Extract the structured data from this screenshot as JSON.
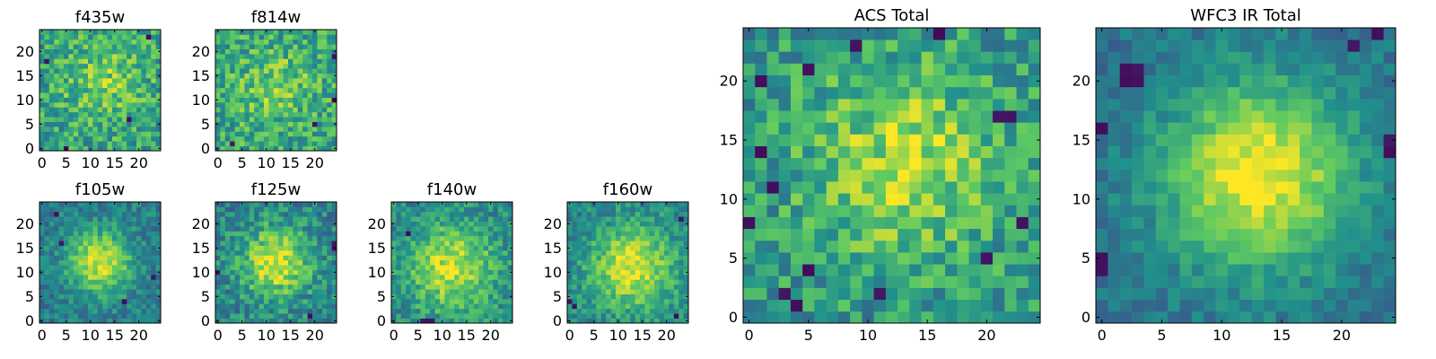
{
  "figure": {
    "colormap": "viridis",
    "colormap_stops": [
      "#440154",
      "#3b528b",
      "#21918c",
      "#5ec962",
      "#fde725"
    ]
  },
  "chart_data": [
    {
      "id": "f435w",
      "type": "heatmap",
      "title": "f435w",
      "grid": [
        25,
        25
      ],
      "xlim": [
        -0.5,
        24.5
      ],
      "ylim": [
        -0.5,
        24.5
      ],
      "xticks": [
        0,
        5,
        10,
        15,
        20
      ],
      "yticks": [
        0,
        5,
        10,
        15,
        20
      ],
      "xtick_labels": [
        "0",
        "5",
        "10",
        "15",
        "20"
      ],
      "ytick_labels": [
        "0",
        "5",
        "10",
        "15",
        "20"
      ],
      "peak": [
        13,
        14
      ],
      "peak_value": 0.78,
      "sigma": 6,
      "background": 0.58,
      "noise": 0.22,
      "dark_pixels": [
        [
          5,
          0
        ],
        [
          1,
          18
        ],
        [
          22,
          23
        ],
        [
          18,
          6
        ]
      ]
    },
    {
      "id": "f814w",
      "type": "heatmap",
      "title": "f814w",
      "grid": [
        25,
        25
      ],
      "xlim": [
        -0.5,
        24.5
      ],
      "ylim": [
        -0.5,
        24.5
      ],
      "xticks": [
        0,
        5,
        10,
        15,
        20
      ],
      "yticks": [
        0,
        5,
        10,
        15,
        20
      ],
      "xtick_labels": [
        "0",
        "5",
        "10",
        "15",
        "20"
      ],
      "ytick_labels": [
        "0",
        "5",
        "10",
        "15",
        "20"
      ],
      "peak": [
        12,
        13
      ],
      "peak_value": 0.78,
      "sigma": 6,
      "background": 0.58,
      "noise": 0.22,
      "dark_pixels": [
        [
          24,
          19
        ],
        [
          24,
          10
        ],
        [
          3,
          1
        ],
        [
          20,
          5
        ]
      ]
    },
    {
      "id": "f105w",
      "type": "heatmap",
      "title": "f105w",
      "grid": [
        25,
        25
      ],
      "xlim": [
        -0.5,
        24.5
      ],
      "ylim": [
        -0.5,
        24.5
      ],
      "xticks": [
        0,
        5,
        10,
        15,
        20
      ],
      "yticks": [
        0,
        5,
        10,
        15,
        20
      ],
      "xtick_labels": [
        "0",
        "5",
        "10",
        "15",
        "20"
      ],
      "ytick_labels": [
        "0",
        "5",
        "10",
        "15",
        "20"
      ],
      "peak": [
        12,
        12
      ],
      "peak_value": 0.95,
      "sigma": 4.5,
      "background": 0.42,
      "noise": 0.14,
      "dark_pixels": [
        [
          4,
          16
        ],
        [
          3,
          22
        ],
        [
          17,
          4
        ],
        [
          23,
          9
        ]
      ]
    },
    {
      "id": "f125w",
      "type": "heatmap",
      "title": "f125w",
      "grid": [
        25,
        25
      ],
      "xlim": [
        -0.5,
        24.5
      ],
      "ylim": [
        -0.5,
        24.5
      ],
      "xticks": [
        0,
        5,
        10,
        15,
        20
      ],
      "yticks": [
        0,
        5,
        10,
        15,
        20
      ],
      "xtick_labels": [
        "0",
        "5",
        "10",
        "15",
        "20"
      ],
      "ytick_labels": [
        "0",
        "5",
        "10",
        "15",
        "20"
      ],
      "peak": [
        12,
        12
      ],
      "peak_value": 0.95,
      "sigma": 5,
      "background": 0.45,
      "noise": 0.18,
      "dark_pixels": [
        [
          0,
          10
        ],
        [
          24,
          15
        ],
        [
          24,
          16
        ],
        [
          19,
          1
        ]
      ]
    },
    {
      "id": "f140w",
      "type": "heatmap",
      "title": "f140w",
      "grid": [
        25,
        25
      ],
      "xlim": [
        -0.5,
        24.5
      ],
      "ylim": [
        -0.5,
        24.5
      ],
      "xticks": [
        0,
        5,
        10,
        15,
        20
      ],
      "yticks": [
        0,
        5,
        10,
        15,
        20
      ],
      "xtick_labels": [
        "0",
        "5",
        "10",
        "15",
        "20"
      ],
      "ytick_labels": [
        "0",
        "5",
        "10",
        "15",
        "20"
      ],
      "peak": [
        12,
        11
      ],
      "peak_value": 0.92,
      "sigma": 6,
      "background": 0.48,
      "noise": 0.16,
      "dark_pixels": [
        [
          6,
          0
        ],
        [
          7,
          0
        ],
        [
          8,
          0
        ],
        [
          3,
          18
        ]
      ]
    },
    {
      "id": "f160w",
      "type": "heatmap",
      "title": "f160w",
      "grid": [
        25,
        25
      ],
      "xlim": [
        -0.5,
        24.5
      ],
      "ylim": [
        -0.5,
        24.5
      ],
      "xticks": [
        0,
        5,
        10,
        15,
        20
      ],
      "yticks": [
        0,
        5,
        10,
        15,
        20
      ],
      "xtick_labels": [
        "0",
        "5",
        "10",
        "15",
        "20"
      ],
      "ytick_labels": [
        "0",
        "5",
        "10",
        "15",
        "20"
      ],
      "peak": [
        13,
        11
      ],
      "peak_value": 0.95,
      "sigma": 6,
      "background": 0.46,
      "noise": 0.15,
      "dark_pixels": [
        [
          0,
          4
        ],
        [
          1,
          3
        ],
        [
          22,
          1
        ],
        [
          23,
          21
        ]
      ]
    },
    {
      "id": "acs-total",
      "type": "heatmap",
      "title": "ACS Total",
      "grid": [
        25,
        25
      ],
      "xlim": [
        -0.5,
        24.5
      ],
      "ylim": [
        -0.5,
        24.5
      ],
      "xticks": [
        0,
        5,
        10,
        15,
        20
      ],
      "yticks": [
        0,
        5,
        10,
        15,
        20
      ],
      "xtick_labels": [
        "0",
        "5",
        "10",
        "15",
        "20"
      ],
      "ytick_labels": [
        "0",
        "5",
        "10",
        "15",
        "20"
      ],
      "peak": [
        13,
        13
      ],
      "peak_value": 0.86,
      "sigma": 6,
      "background": 0.52,
      "noise": 0.2,
      "dark_pixels": [
        [
          5,
          21
        ],
        [
          9,
          23
        ],
        [
          1,
          20
        ],
        [
          2,
          11
        ],
        [
          3,
          2
        ],
        [
          11,
          2
        ],
        [
          5,
          4
        ],
        [
          1,
          14
        ],
        [
          21,
          17
        ],
        [
          22,
          17
        ],
        [
          23,
          8
        ],
        [
          0,
          8
        ],
        [
          20,
          5
        ],
        [
          4,
          1
        ],
        [
          16,
          24
        ]
      ]
    },
    {
      "id": "wfc3-ir-total",
      "type": "heatmap",
      "title": "WFC3 IR Total",
      "grid": [
        25,
        25
      ],
      "xlim": [
        -0.5,
        24.5
      ],
      "ylim": [
        -0.5,
        24.5
      ],
      "xticks": [
        0,
        5,
        10,
        15,
        20
      ],
      "yticks": [
        0,
        5,
        10,
        15,
        20
      ],
      "xtick_labels": [
        "0",
        "5",
        "10",
        "15",
        "20"
      ],
      "ytick_labels": [
        "0",
        "5",
        "10",
        "15",
        "20"
      ],
      "peak": [
        13,
        12
      ],
      "peak_value": 1.0,
      "sigma": 5.5,
      "background": 0.38,
      "noise": 0.1,
      "dark_pixels": [
        [
          2,
          21
        ],
        [
          3,
          21
        ],
        [
          2,
          20
        ],
        [
          3,
          20
        ],
        [
          0,
          16
        ],
        [
          0,
          5
        ],
        [
          0,
          4
        ],
        [
          24,
          15
        ],
        [
          24,
          14
        ],
        [
          23,
          24
        ],
        [
          21,
          23
        ]
      ]
    }
  ]
}
